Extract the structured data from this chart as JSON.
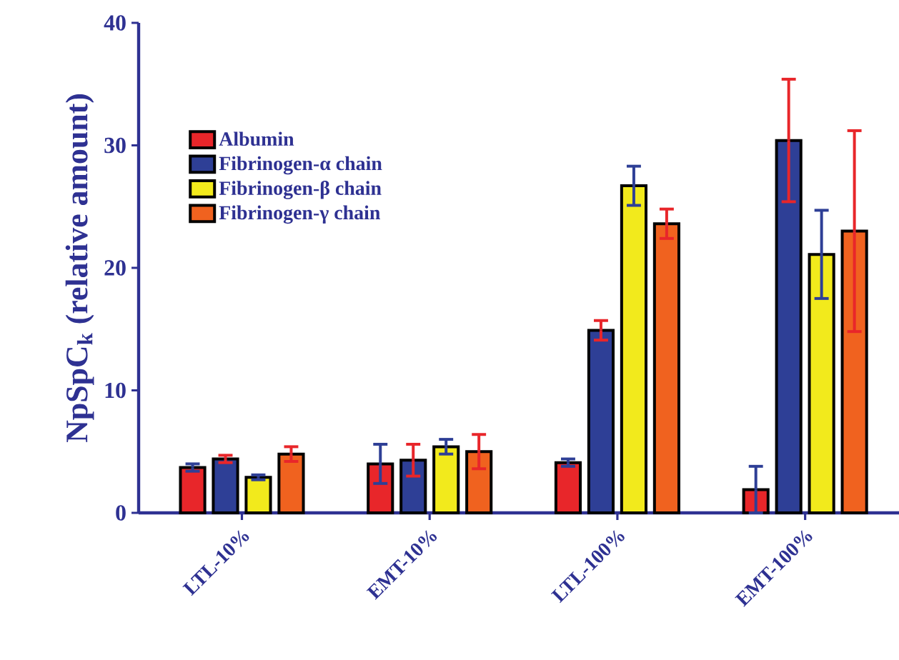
{
  "chart_data": {
    "type": "bar",
    "ylabel": "NpSpC$_{k}$ (relative amount)",
    "categories": [
      "LTL-10%",
      "EMT-10%",
      "LTL-100%",
      "EMT-100%"
    ],
    "series": [
      {
        "name": "Albumin",
        "color": "#e8262a",
        "values": [
          3.7,
          4.0,
          4.1,
          1.9
        ],
        "errors": [
          0.3,
          1.6,
          0.3,
          1.9
        ]
      },
      {
        "name": "Fibrinogen-α chain",
        "color": "#2e3f96",
        "values": [
          4.4,
          4.3,
          14.9,
          30.4
        ],
        "errors": [
          0.3,
          1.3,
          0.8,
          5.0
        ]
      },
      {
        "name": "Fibrinogen-β chain",
        "color": "#f2ea1c",
        "values": [
          2.9,
          5.4,
          26.7,
          21.1
        ],
        "errors": [
          0.2,
          0.6,
          1.6,
          3.6
        ]
      },
      {
        "name": "Fibrinogen-γ chain",
        "color": "#f0621f",
        "values": [
          4.8,
          5.0,
          23.6,
          23.0
        ],
        "errors": [
          0.6,
          1.4,
          1.2,
          8.2
        ]
      }
    ],
    "ylim": [
      0,
      40
    ],
    "yticks": [
      0,
      10,
      20,
      30,
      40
    ],
    "legend": "top left",
    "grid": false
  }
}
